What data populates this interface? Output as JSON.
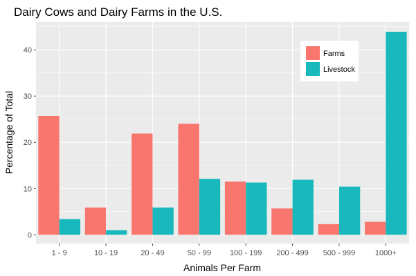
{
  "chart_data": {
    "type": "bar",
    "title": "Dairy Cows and Dairy Farms in the U.S.",
    "xlabel": "Animals Per Farm",
    "ylabel": "Percentage of Total",
    "categories": [
      "1 - 9",
      "10 - 19",
      "20 - 49",
      "50 - 99",
      "100 - 199",
      "200 - 499",
      "500 - 999",
      "1000+"
    ],
    "series": [
      {
        "name": "Farms",
        "color": "#F8766D",
        "values": [
          25.7,
          5.9,
          21.9,
          24.0,
          11.5,
          5.7,
          2.3,
          2.8
        ]
      },
      {
        "name": "Livestock",
        "color": "#19B8BC",
        "values": [
          3.4,
          1.0,
          5.9,
          12.1,
          11.3,
          11.9,
          10.4,
          43.9
        ]
      }
    ],
    "ylim": [
      -1.9,
      46.0
    ],
    "yticks": [
      "0",
      "10",
      "20",
      "30",
      "40"
    ],
    "grid": true,
    "legend_position": "top-right",
    "panel_color": "#EBEBEB"
  }
}
